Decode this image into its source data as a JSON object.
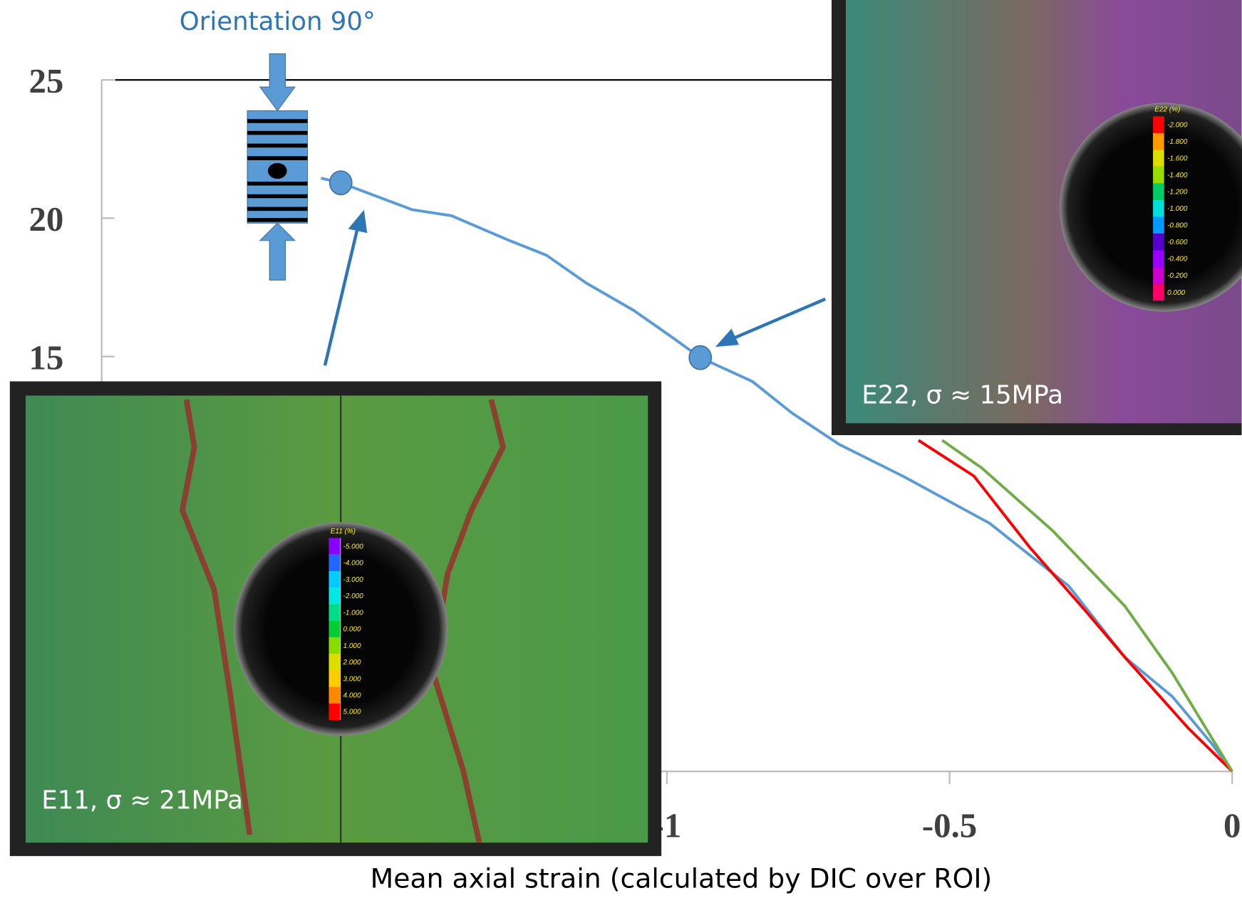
{
  "chart_data": {
    "type": "line",
    "x_label": "Mean axial strain (calculated by DIC over ROI)",
    "xlim": [
      -2,
      0
    ],
    "xticks": [
      -1,
      -0.5,
      0
    ],
    "ylim": [
      0,
      25
    ],
    "yticks": [
      15,
      20,
      25
    ],
    "series": [
      {
        "color": "#5b9bd5",
        "x": [
          -1.612,
          -1.577,
          -1.451,
          -1.381,
          -1.283,
          -1.213,
          -1.143,
          -1.059,
          -0.989,
          -0.941,
          -0.849,
          -0.779,
          -0.695,
          -0.583,
          -0.429,
          -0.289,
          -0.19,
          -0.106,
          -0.036,
          0
        ],
        "values": [
          21.45,
          21.28,
          20.31,
          20.09,
          19.23,
          18.66,
          17.66,
          16.67,
          15.67,
          14.96,
          14.1,
          12.96,
          11.82,
          10.68,
          8.97,
          6.7,
          4.13,
          2.71,
          1.0,
          0
        ]
      },
      {
        "color": "#ff0000",
        "x": [
          -0.555,
          -0.457,
          -0.359,
          -0.261,
          -0.19,
          -0.078,
          0
        ],
        "values": [
          11.97,
          10.68,
          8.12,
          5.84,
          4.13,
          1.57,
          0
        ]
      },
      {
        "color": "#70ad47",
        "x": [
          -0.513,
          -0.443,
          -0.317,
          -0.19,
          -0.106,
          0
        ],
        "values": [
          11.97,
          10.97,
          8.69,
          5.98,
          3.56,
          0
        ]
      }
    ],
    "markers": {
      "color": "#5b9bd5",
      "x": [
        -1.577,
        -0.941
      ],
      "values": [
        21.28,
        14.96
      ]
    },
    "annotations": {
      "orientation": "Orientation 90°"
    },
    "insets": [
      {
        "caption": "E11, σ ≈ 21MPa",
        "colorbar": {
          "title": "E11 (%)",
          "labels": [
            "-5.000",
            "-4.000",
            "-3.000",
            "-2.000",
            "-1.000",
            "0.000",
            "1.000",
            "2.000",
            "3.000",
            "4.000",
            "5.000"
          ]
        }
      },
      {
        "caption": "E22, σ ≈ 15MPa",
        "colorbar": {
          "title": "E22 (%)",
          "labels": [
            "-2.000",
            "-1.800",
            "-1.600",
            "-1.400",
            "-1.200",
            "-1.000",
            "-0.800",
            "-0.600",
            "-0.400",
            "-0.200",
            "0.000"
          ]
        }
      }
    ]
  }
}
